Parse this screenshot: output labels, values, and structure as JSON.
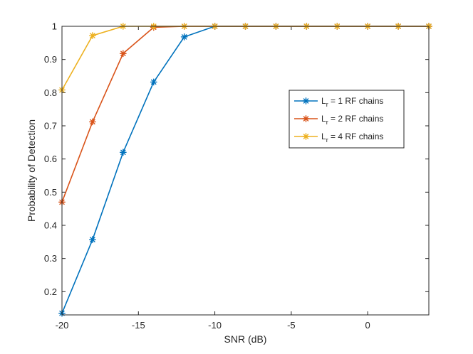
{
  "chart_data": {
    "type": "line",
    "title": "",
    "xlabel": "SNR (dB)",
    "ylabel": "Probability of Detection",
    "xlim": [
      -20,
      4
    ],
    "ylim": [
      0.13,
      1
    ],
    "xticks": [
      -20,
      -15,
      -10,
      -5,
      0
    ],
    "xtick_labels": [
      "-20",
      "-15",
      "-10",
      "-5",
      "0"
    ],
    "yticks": [
      0.2,
      0.3,
      0.4,
      0.5,
      0.6,
      0.7,
      0.8,
      0.9,
      1
    ],
    "ytick_labels": [
      "0.2",
      "0.3",
      "0.4",
      "0.5",
      "0.6",
      "0.7",
      "0.8",
      "0.9",
      "1"
    ],
    "grid": false,
    "legend_position": "right",
    "marker": "asterisk",
    "x": [
      -20,
      -18,
      -16,
      -14,
      -12,
      -10,
      -8,
      -6,
      -4,
      -2,
      0,
      2,
      4
    ],
    "series": [
      {
        "legend_prefix": "L",
        "legend_sub": "r",
        "legend_suffix": " = 1 RF chains",
        "color": "#0072BD",
        "values": [
          0.135,
          0.357,
          0.62,
          0.832,
          0.968,
          1,
          1,
          1,
          1,
          1,
          1,
          1,
          1
        ]
      },
      {
        "legend_prefix": "L",
        "legend_sub": "r",
        "legend_suffix": " = 2 RF chains",
        "color": "#D95319",
        "values": [
          0.47,
          0.712,
          0.918,
          0.997,
          1,
          1,
          1,
          1,
          1,
          1,
          1,
          1,
          1
        ]
      },
      {
        "legend_prefix": "L",
        "legend_sub": "r",
        "legend_suffix": " = 4 RF chains",
        "color": "#EDB120",
        "values": [
          0.808,
          0.972,
          1,
          1,
          1,
          1,
          1,
          1,
          1,
          1,
          1,
          1,
          1
        ]
      }
    ]
  }
}
